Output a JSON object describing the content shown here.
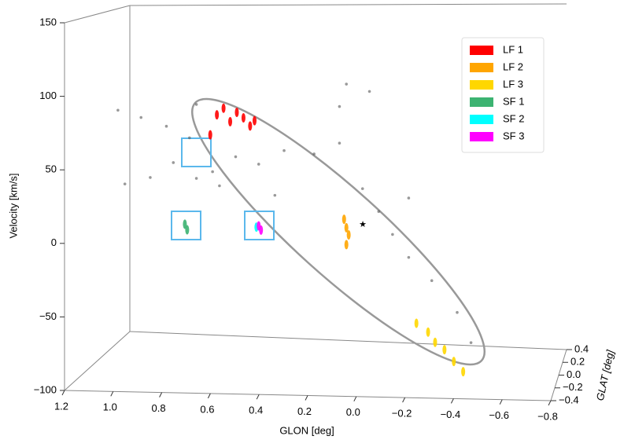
{
  "chart_data": {
    "type": "scatter3d",
    "xlabel": "GLON [deg]",
    "ylabel": "GLAT [deg]",
    "zlabel": "Velocity [km/s]",
    "xlim": [
      1.2,
      -0.8
    ],
    "ylim": [
      -0.4,
      0.4
    ],
    "zlim": [
      -100,
      150
    ],
    "xticks": [
      1.2,
      {
        "value": 1.0,
        "label": "1.0"
      },
      0.8,
      0.6,
      0.4,
      0.2,
      {
        "value": 0,
        "label": "0.0"
      },
      {
        "value": -0.2,
        "label": "−0.2"
      },
      {
        "value": -0.4,
        "label": "−0.4"
      },
      {
        "value": -0.6,
        "label": "−0.6"
      },
      {
        "value": -0.8,
        "label": "−0.8"
      }
    ],
    "yticks": [
      0.4,
      0.2,
      {
        "value": 0,
        "label": "0.0"
      },
      {
        "value": -0.2,
        "label": "−0.2"
      },
      {
        "value": -0.4,
        "label": "−0.4"
      }
    ],
    "zticks": [
      150,
      100,
      50,
      0,
      {
        "value": -50,
        "label": "−50"
      },
      {
        "value": -100,
        "label": "−100"
      }
    ],
    "legend": "upper right",
    "series": [
      {
        "color": "#555555",
        "x": [
          1.11,
          1.01,
          0.9,
          0.8,
          0.87,
          0.77,
          0.67,
          0.6,
          0.5,
          0.39,
          0.26,
          0.15,
          0.05,
          -0.02,
          -0.08,
          -0.15,
          -0.25,
          -0.36,
          -0.42,
          1.08,
          0.97,
          0.7,
          0.43,
          0.12,
          0.02,
          -0.15,
          0.15,
          0.77
        ],
        "y": [
          0,
          0,
          0,
          0,
          0,
          0,
          0,
          0,
          0,
          0,
          0,
          0,
          0,
          0,
          0,
          0,
          0,
          0,
          0,
          0,
          0,
          0,
          0,
          0,
          0,
          0,
          0,
          0
        ],
        "z": [
          81,
          76,
          70,
          62,
          44,
          33,
          28,
          49,
          44,
          54,
          52,
          60,
          28,
          12,
          -4,
          -20,
          -36,
          -58,
          -79,
          28,
          33,
          38,
          22,
          102,
          97,
          22,
          86,
          86
        ]
      },
      {
        "name": "LF 1",
        "color": "#ff0000",
        "x": [
          0.8,
          0.77,
          0.74,
          0.71,
          0.68,
          0.65,
          0.62,
          0.6
        ],
        "y": [
          0.3,
          0.3,
          0.3,
          0.3,
          0.3,
          0.3,
          0.3,
          0.3
        ],
        "z": [
          55,
          70,
          75,
          65,
          72,
          68,
          62,
          66
        ]
      },
      {
        "name": "LF 2",
        "color": "#ffa500",
        "x": [
          0.13,
          0.12,
          0.11,
          0.12
        ],
        "y": [
          0,
          0,
          0,
          0
        ],
        "z": [
          6,
          0,
          -5,
          -12
        ]
      },
      {
        "name": "LF 3",
        "color": "#ffd700",
        "x": [
          -0.2,
          -0.25,
          -0.28,
          -0.32,
          -0.36,
          -0.4
        ],
        "y": [
          -0.1,
          -0.1,
          -0.1,
          -0.1,
          -0.1,
          -0.1
        ],
        "z": [
          -62,
          -68,
          -75,
          -80,
          -88,
          -95
        ]
      },
      {
        "name": "SF 1",
        "color": "#3cb371",
        "x": [
          0.82,
          0.81
        ],
        "y": [
          0,
          0
        ],
        "z": [
          0,
          -4
        ]
      },
      {
        "name": "SF 2",
        "color": "#00ffff",
        "x": [
          0.51
        ],
        "y": [
          0
        ],
        "z": [
          -1
        ]
      },
      {
        "name": "SF 3",
        "color": "#ff00ff",
        "x": [
          0.5,
          0.49
        ],
        "y": [
          0,
          0
        ],
        "z": [
          0,
          -3
        ]
      }
    ]
  }
}
